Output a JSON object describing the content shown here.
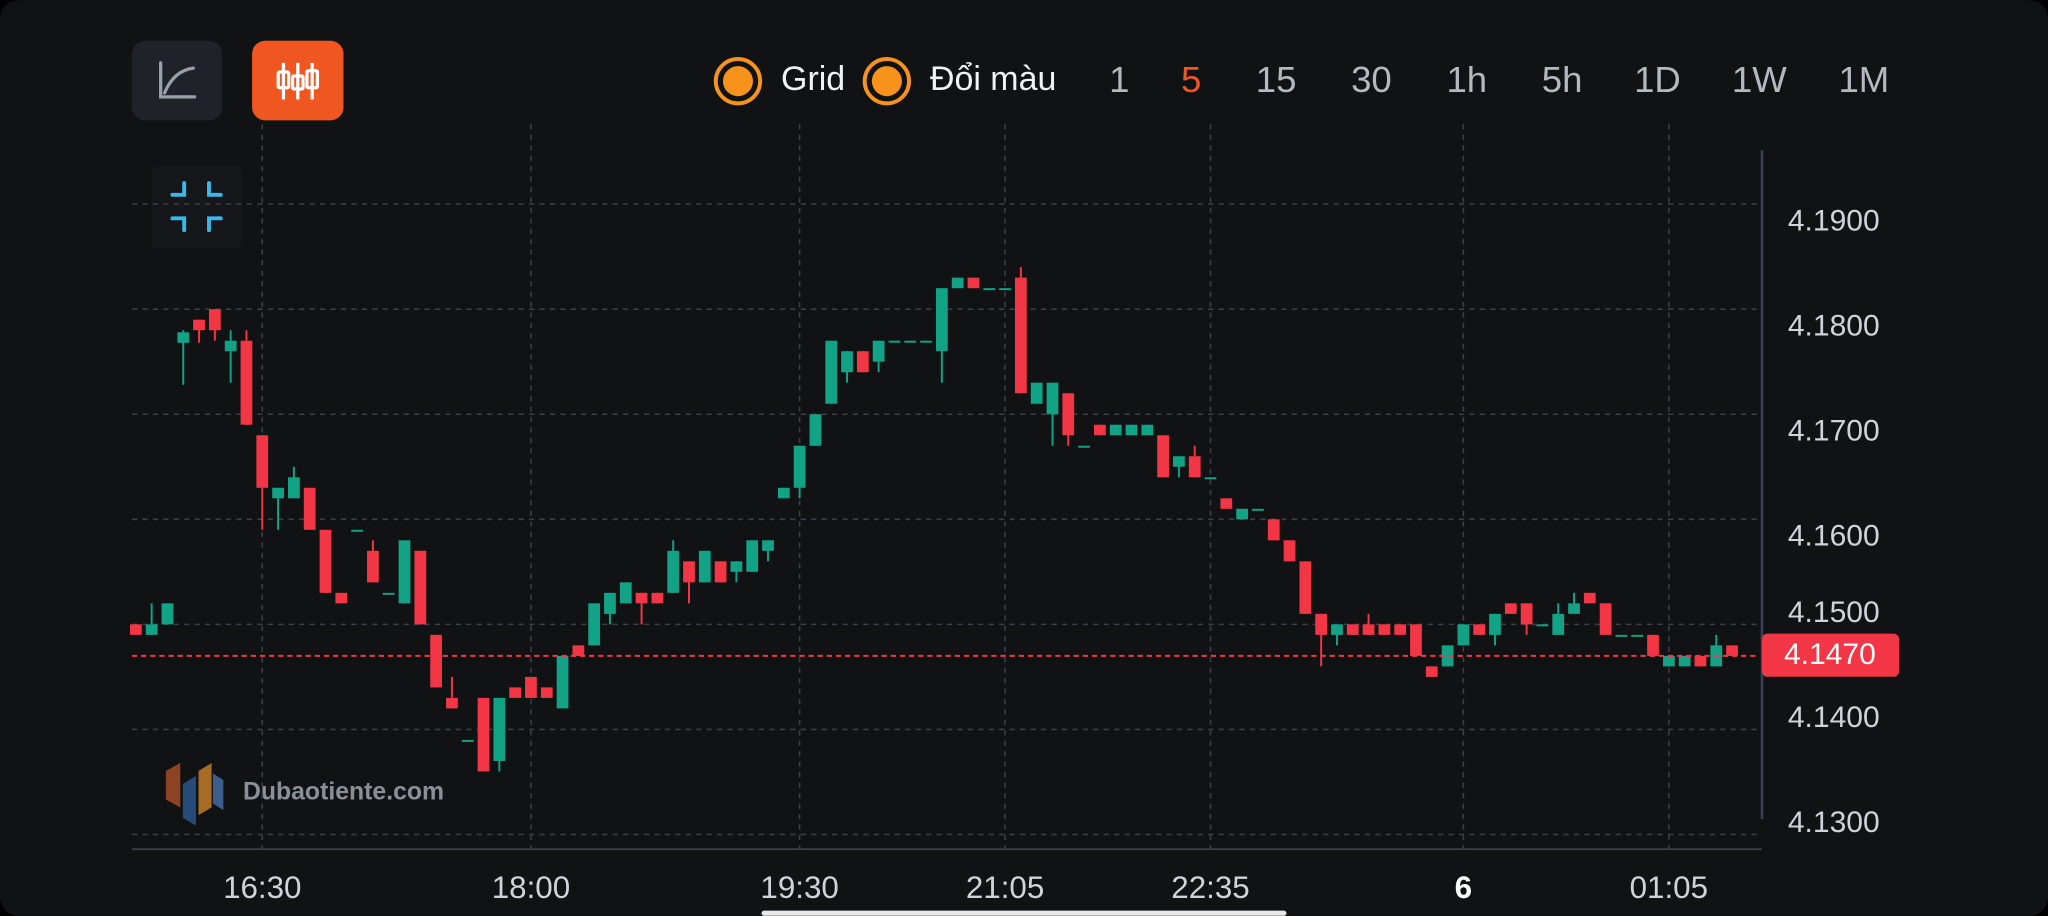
{
  "toolbar": {
    "toggles": [
      "Grid",
      "Đổi màu"
    ],
    "intervals": [
      "1",
      "5",
      "15",
      "30",
      "1h",
      "5h",
      "1D",
      "1W",
      "1M"
    ],
    "active_interval": "5"
  },
  "watermark": "Dubaotiente.com",
  "chart_data": {
    "type": "candlestick",
    "up_color": "#12a386",
    "down_color": "#f23645",
    "grid": true,
    "categories": [
      null,
      null,
      null,
      null,
      null,
      null,
      null,
      null,
      "16:30",
      null,
      null,
      null,
      null,
      null,
      null,
      null,
      null,
      null,
      null,
      null,
      null,
      null,
      null,
      null,
      null,
      "18:00",
      null,
      null,
      null,
      null,
      null,
      null,
      null,
      null,
      null,
      null,
      null,
      null,
      null,
      null,
      null,
      null,
      "19:30",
      null,
      null,
      null,
      null,
      null,
      null,
      null,
      null,
      null,
      null,
      null,
      null,
      "21:05",
      null,
      null,
      null,
      null,
      null,
      null,
      null,
      null,
      null,
      null,
      null,
      null,
      "22:35",
      null,
      null,
      null,
      null,
      null,
      null,
      null,
      null,
      null,
      null,
      null,
      null,
      null,
      null,
      null,
      "6",
      null,
      null,
      null,
      null,
      null,
      null,
      null,
      null,
      null,
      null,
      null,
      null,
      "01:05",
      null,
      null,
      null,
      null
    ],
    "open": [
      4.15,
      4.149,
      4.15,
      4.1768,
      4.179,
      4.18,
      4.176,
      4.177,
      4.168,
      4.162,
      4.162,
      4.163,
      4.159,
      4.153,
      4.159,
      4.157,
      4.153,
      4.152,
      4.157,
      4.149,
      4.143,
      4.139,
      4.143,
      4.137,
      4.144,
      4.145,
      4.144,
      4.142,
      4.148,
      4.148,
      4.151,
      4.152,
      4.153,
      4.153,
      4.153,
      4.156,
      4.154,
      4.156,
      4.155,
      4.155,
      4.157,
      4.162,
      4.163,
      4.167,
      4.171,
      4.174,
      4.176,
      4.175,
      4.177,
      4.177,
      4.177,
      4.176,
      4.182,
      4.183,
      4.182,
      4.182,
      4.183,
      4.171,
      4.17,
      4.172,
      4.167,
      4.169,
      4.168,
      4.168,
      4.168,
      4.168,
      4.165,
      4.166,
      4.164,
      4.162,
      4.16,
      4.161,
      4.16,
      4.158,
      4.156,
      4.151,
      4.149,
      4.15,
      4.15,
      4.15,
      4.15,
      4.15,
      4.146,
      4.146,
      4.148,
      4.15,
      4.149,
      4.152,
      4.152,
      4.15,
      4.149,
      4.151,
      4.153,
      4.152,
      4.149,
      4.149,
      4.149,
      4.146,
      4.146,
      4.147,
      4.146,
      4.148
    ],
    "high": [
      4.15,
      4.152,
      4.152,
      4.178,
      4.179,
      4.18,
      4.178,
      4.178,
      4.168,
      4.163,
      4.165,
      4.163,
      4.159,
      4.153,
      4.159,
      4.158,
      4.153,
      4.158,
      4.157,
      4.149,
      4.145,
      4.139,
      4.143,
      4.143,
      4.144,
      4.145,
      4.144,
      4.147,
      4.148,
      4.152,
      4.153,
      4.154,
      4.153,
      4.153,
      4.158,
      4.156,
      4.157,
      4.156,
      4.156,
      4.158,
      4.158,
      4.163,
      4.167,
      4.17,
      4.177,
      4.176,
      4.176,
      4.177,
      4.177,
      4.177,
      4.177,
      4.182,
      4.183,
      4.183,
      4.182,
      4.182,
      4.184,
      4.173,
      4.173,
      4.172,
      4.167,
      4.169,
      4.169,
      4.169,
      4.169,
      4.168,
      4.166,
      4.167,
      4.164,
      4.162,
      4.161,
      4.161,
      4.16,
      4.158,
      4.156,
      4.151,
      4.15,
      4.15,
      4.151,
      4.15,
      4.15,
      4.15,
      4.146,
      4.148,
      4.15,
      4.15,
      4.151,
      4.152,
      4.152,
      4.15,
      4.152,
      4.153,
      4.153,
      4.152,
      4.149,
      4.149,
      4.149,
      4.147,
      4.147,
      4.147,
      4.149,
      4.148
    ],
    "low": [
      4.149,
      4.149,
      4.15,
      4.1728,
      4.1768,
      4.177,
      4.173,
      4.169,
      4.159,
      4.159,
      4.162,
      4.159,
      4.153,
      4.152,
      4.159,
      4.154,
      4.153,
      4.152,
      4.15,
      4.144,
      4.142,
      4.139,
      4.136,
      4.136,
      4.143,
      4.143,
      4.143,
      4.142,
      4.147,
      4.148,
      4.15,
      4.152,
      4.15,
      4.152,
      4.153,
      4.152,
      4.154,
      4.154,
      4.154,
      4.155,
      4.156,
      4.162,
      4.162,
      4.167,
      4.171,
      4.173,
      4.174,
      4.174,
      4.177,
      4.177,
      4.177,
      4.173,
      4.182,
      4.182,
      4.182,
      4.182,
      4.172,
      4.171,
      4.167,
      4.167,
      4.167,
      4.168,
      4.168,
      4.168,
      4.168,
      4.164,
      4.164,
      4.164,
      4.164,
      4.161,
      4.16,
      4.161,
      4.158,
      4.156,
      4.151,
      4.146,
      4.148,
      4.149,
      4.149,
      4.149,
      4.149,
      4.147,
      4.145,
      4.146,
      4.148,
      4.149,
      4.148,
      4.151,
      4.149,
      4.15,
      4.149,
      4.151,
      4.152,
      4.149,
      4.149,
      4.149,
      4.147,
      4.146,
      4.146,
      4.146,
      4.146,
      4.147
    ],
    "close": [
      4.149,
      4.15,
      4.152,
      4.1778,
      4.178,
      4.178,
      4.177,
      4.169,
      4.163,
      4.163,
      4.164,
      4.159,
      4.153,
      4.152,
      4.159,
      4.154,
      4.153,
      4.158,
      4.15,
      4.144,
      4.142,
      4.139,
      4.136,
      4.143,
      4.143,
      4.143,
      4.143,
      4.147,
      4.147,
      4.152,
      4.153,
      4.154,
      4.152,
      4.152,
      4.157,
      4.154,
      4.157,
      4.154,
      4.156,
      4.158,
      4.158,
      4.163,
      4.167,
      4.17,
      4.177,
      4.176,
      4.174,
      4.177,
      4.177,
      4.177,
      4.177,
      4.182,
      4.183,
      4.182,
      4.182,
      4.182,
      4.172,
      4.173,
      4.173,
      4.168,
      4.167,
      4.168,
      4.169,
      4.169,
      4.169,
      4.164,
      4.166,
      4.164,
      4.164,
      4.161,
      4.161,
      4.161,
      4.158,
      4.156,
      4.151,
      4.149,
      4.15,
      4.149,
      4.149,
      4.149,
      4.149,
      4.147,
      4.145,
      4.148,
      4.15,
      4.149,
      4.151,
      4.151,
      4.15,
      4.15,
      4.151,
      4.152,
      4.152,
      4.149,
      4.149,
      4.149,
      4.147,
      4.147,
      4.147,
      4.146,
      4.148,
      4.147
    ],
    "ylim": [
      4.1286,
      4.1976
    ],
    "yticks": [
      {
        "value": 4.13,
        "label": "4.1300"
      },
      {
        "value": 4.14,
        "label": "4.1400"
      },
      {
        "value": 4.15,
        "label": "4.1500"
      },
      {
        "value": 4.16,
        "label": "4.1600"
      },
      {
        "value": 4.17,
        "label": "4.1700"
      },
      {
        "value": 4.18,
        "label": "4.1800"
      },
      {
        "value": 4.19,
        "label": "4.1900"
      }
    ],
    "last_price": {
      "value": 4.147,
      "label": "4.1470"
    }
  }
}
